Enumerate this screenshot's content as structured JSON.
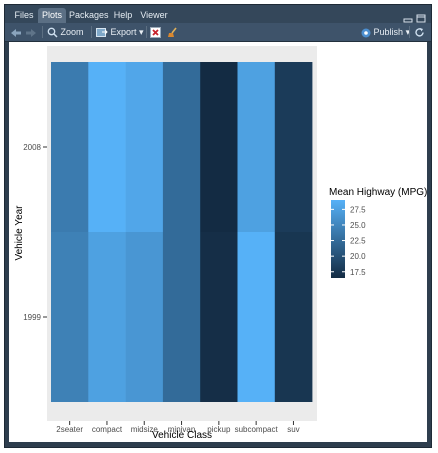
{
  "tabs": [
    {
      "label": "Files"
    },
    {
      "label": "Plots"
    },
    {
      "label": "Packages"
    },
    {
      "label": "Help"
    },
    {
      "label": "Viewer"
    }
  ],
  "toolbar": {
    "zoom_label": "Zoom",
    "export_label": "Export",
    "publish_label": "Publish"
  },
  "colors": {
    "low": "#132b43",
    "high": "#56b1f7",
    "panel_bg": "#ebebeb"
  },
  "chart_data": {
    "type": "heatmap",
    "title": "",
    "xlabel": "Vehicle Class",
    "ylabel": "Vehicle Year",
    "x_categories": [
      "2seater",
      "compact",
      "midsize",
      "minivan",
      "pickup",
      "subcompact",
      "suv"
    ],
    "y_categories": [
      "1999",
      "2008"
    ],
    "values": {
      "2008": [
        24.0,
        29.0,
        28.0,
        22.5,
        16.5,
        27.5,
        18.0
      ],
      "1999": [
        24.5,
        27.5,
        26.5,
        22.5,
        16.8,
        29.0,
        17.5
      ]
    },
    "legend": {
      "title": "Mean Highway (MPG)",
      "ticks": [
        "27.5",
        "25.0",
        "22.5",
        "20.0",
        "17.5"
      ],
      "tick_values": [
        27.5,
        25.0,
        22.5,
        20.0,
        17.5
      ],
      "range": [
        16.5,
        29.0
      ],
      "placement": "right"
    },
    "grid": true
  }
}
